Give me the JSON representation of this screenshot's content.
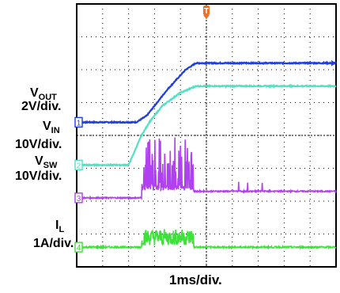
{
  "chart_data": {
    "type": "line",
    "x_label": "1ms/div.",
    "x_divisions": 10,
    "y_divisions": 8,
    "grid": true,
    "trigger_marker": "T",
    "channels": [
      {
        "id": "1",
        "name_main": "V",
        "name_sub": "OUT",
        "scale": "2V/div.",
        "color": "#1f3fe0",
        "description_points": [
          [
            0,
            4.4
          ],
          [
            2.3,
            4.4
          ],
          [
            2.7,
            4.6
          ],
          [
            3.5,
            5.4
          ],
          [
            4.2,
            6.0
          ],
          [
            4.6,
            6.2
          ],
          [
            10,
            6.2
          ]
        ]
      },
      {
        "id": "2",
        "name_main": "V",
        "name_sub": "IN",
        "scale": "10V/div.",
        "color": "#53e0c4",
        "description_points": [
          [
            0,
            3.1
          ],
          [
            2.0,
            3.1
          ],
          [
            2.5,
            4.0
          ],
          [
            2.8,
            4.4
          ],
          [
            3.3,
            4.9
          ],
          [
            4.0,
            5.3
          ],
          [
            4.6,
            5.5
          ],
          [
            10,
            5.5
          ]
        ]
      },
      {
        "id": "3",
        "name_main": "V",
        "name_sub": "SW",
        "scale": "10V/div.",
        "color": "#b040f0",
        "description_points": [
          [
            0,
            2.1
          ],
          [
            2.5,
            2.1
          ],
          [
            2.5,
            2.4
          ],
          [
            4.5,
            2.4
          ],
          [
            4.5,
            2.3
          ],
          [
            10,
            2.3
          ]
        ]
      },
      {
        "id": "4",
        "name_main": "I",
        "name_sub": "L",
        "scale": "1A/div.",
        "color": "#3ee03a",
        "description_points": [
          [
            0,
            0.6
          ],
          [
            2.5,
            0.6
          ],
          [
            2.5,
            0.9
          ],
          [
            4.5,
            0.9
          ],
          [
            4.5,
            0.6
          ],
          [
            10,
            0.6
          ]
        ]
      }
    ]
  }
}
